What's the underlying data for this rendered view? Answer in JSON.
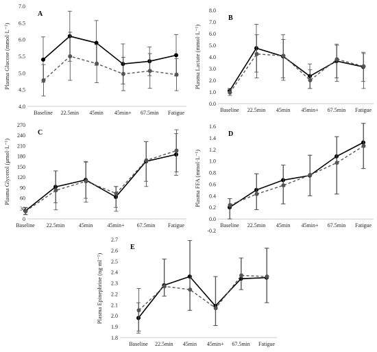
{
  "chart_data": [
    {
      "type": "line",
      "panel": "A",
      "ylabel": "Plasma Glucose (mmol·L⁻¹)",
      "ylim": [
        4.0,
        7.0
      ],
      "yticks": [
        "4.0",
        "4.5",
        "5.0",
        "5.5",
        "6.0",
        "6.5",
        "7.0"
      ],
      "categories": [
        "Baseline",
        "22.5min",
        "45min",
        "45min+",
        "67.5min",
        "Fatigue"
      ],
      "series": [
        {
          "style": "solid",
          "color": "#000000",
          "values": [
            5.4,
            6.1,
            5.9,
            5.27,
            5.35,
            5.53
          ],
          "err_hi": [
            6.08,
            6.85,
            6.57,
            5.87,
            5.78,
            6.15
          ],
          "err_lo": [
            4.72,
            5.35,
            5.23,
            4.67,
            4.92,
            4.91
          ]
        },
        {
          "style": "dashed",
          "color": "#555555",
          "values": [
            4.78,
            5.5,
            5.28,
            4.97,
            5.06,
            4.95
          ],
          "err_hi": [
            5.25,
            6.22,
            5.85,
            5.47,
            5.58,
            5.43
          ],
          "err_lo": [
            4.31,
            4.78,
            4.71,
            4.47,
            4.54,
            4.47
          ]
        }
      ]
    },
    {
      "type": "line",
      "panel": "B",
      "ylabel": "Plasma Lactate (mmol·L⁻¹)",
      "ylim": [
        0.0,
        8.0
      ],
      "yticks": [
        "0.0",
        "1.0",
        "2.0",
        "3.0",
        "4.0",
        "5.0",
        "6.0",
        "7.0",
        "8.0"
      ],
      "categories": [
        "Baseline",
        "22.5min",
        "45min",
        "45min+",
        "67.5min",
        "Fatigue"
      ],
      "series": [
        {
          "style": "solid",
          "color": "#000000",
          "values": [
            1.1,
            4.75,
            4.05,
            2.35,
            3.65,
            3.15
          ],
          "err_hi": [
            1.3,
            6.8,
            5.9,
            3.4,
            5.1,
            4.4
          ],
          "err_lo": [
            0.9,
            2.7,
            2.2,
            1.3,
            2.2,
            1.9
          ]
        },
        {
          "style": "dashed",
          "color": "#555555",
          "values": [
            0.95,
            4.25,
            4.1,
            2.0,
            3.8,
            3.2
          ],
          "err_hi": [
            1.2,
            5.9,
            5.5,
            2.9,
            5.0,
            4.3
          ],
          "err_lo": [
            0.7,
            2.2,
            2.0,
            1.3,
            1.9,
            1.3
          ]
        }
      ]
    },
    {
      "type": "line",
      "panel": "C",
      "ylabel": "Plasma Glycerol (μmol·L⁻¹)",
      "ylim": [
        0,
        270
      ],
      "yticks": [
        "0",
        "30",
        "60",
        "90",
        "120",
        "150",
        "180",
        "210",
        "240",
        "270"
      ],
      "categories": [
        "Baseline",
        "22.5min",
        "45min",
        "45min+",
        "67.5min",
        "Fatigue"
      ],
      "series": [
        {
          "style": "solid",
          "color": "#000000",
          "values": [
            23,
            92,
            112,
            63,
            165,
            185
          ],
          "err_hi": [
            33,
            138,
            165,
            93,
            222,
            245
          ],
          "err_lo": [
            13,
            46,
            59,
            33,
            108,
            125
          ]
        },
        {
          "style": "dashed",
          "color": "#555555",
          "values": [
            22,
            82,
            108,
            73,
            168,
            196
          ],
          "err_hi": [
            32,
            138,
            163,
            93,
            222,
            256
          ],
          "err_lo": [
            12,
            26,
            48,
            22,
            93,
            135
          ]
        }
      ]
    },
    {
      "type": "line",
      "panel": "D",
      "ylabel": "Plasma FFA (mmol·L⁻¹)",
      "ylim": [
        -0.2,
        1.6
      ],
      "yticks": [
        "-0.2",
        "0.0",
        "0.2",
        "0.4",
        "0.6",
        "0.8",
        "1.0",
        "1.2",
        "1.4",
        "1.6"
      ],
      "categories": [
        "Baseline",
        "22.5min",
        "45min",
        "45min+",
        "67.5min",
        "Fatigue"
      ],
      "series": [
        {
          "style": "solid",
          "color": "#000000",
          "values": [
            0.2,
            0.5,
            0.67,
            0.75,
            1.08,
            1.32
          ],
          "err_hi": [
            0.35,
            0.78,
            0.93,
            1.1,
            1.42,
            1.65
          ],
          "err_lo": [
            0.0,
            0.16,
            0.26,
            0.4,
            0.43,
            0.87
          ]
        },
        {
          "style": "dashed",
          "color": "#555555",
          "values": [
            0.24,
            0.43,
            0.58,
            0.76,
            0.97,
            1.26
          ],
          "err_hi": [
            0.35,
            0.78,
            0.93,
            1.1,
            1.42,
            1.65
          ],
          "err_lo": [
            0.0,
            0.16,
            0.26,
            0.4,
            0.43,
            0.87
          ]
        }
      ]
    },
    {
      "type": "line",
      "panel": "E",
      "ylabel": "Plasma Epinephrine (ng·ml⁻¹)",
      "ylim": [
        1.8,
        2.7
      ],
      "yticks": [
        "1.8",
        "1.9",
        "2.0",
        "2.1",
        "2.2",
        "2.3",
        "2.4",
        "2.5",
        "2.6",
        "2.7"
      ],
      "categories": [
        "Baseline",
        "22.5min",
        "45min",
        "45min+",
        "67.5min",
        "Fatigue"
      ],
      "series": [
        {
          "style": "solid",
          "color": "#000000",
          "values": [
            1.98,
            2.28,
            2.36,
            2.09,
            2.34,
            2.35
          ],
          "err_hi": [
            2.12,
            2.52,
            2.69,
            2.36,
            2.53,
            2.62
          ],
          "err_lo": [
            1.84,
            2.18,
            2.05,
            1.91,
            2.24,
            2.12
          ]
        },
        {
          "style": "dashed",
          "color": "#555555",
          "values": [
            2.05,
            2.27,
            2.24,
            2.07,
            2.37,
            2.36
          ],
          "err_hi": [
            2.25,
            2.52,
            2.69,
            2.36,
            2.53,
            2.62
          ],
          "err_lo": [
            1.86,
            2.18,
            2.05,
            1.91,
            2.24,
            2.12
          ]
        }
      ]
    }
  ]
}
